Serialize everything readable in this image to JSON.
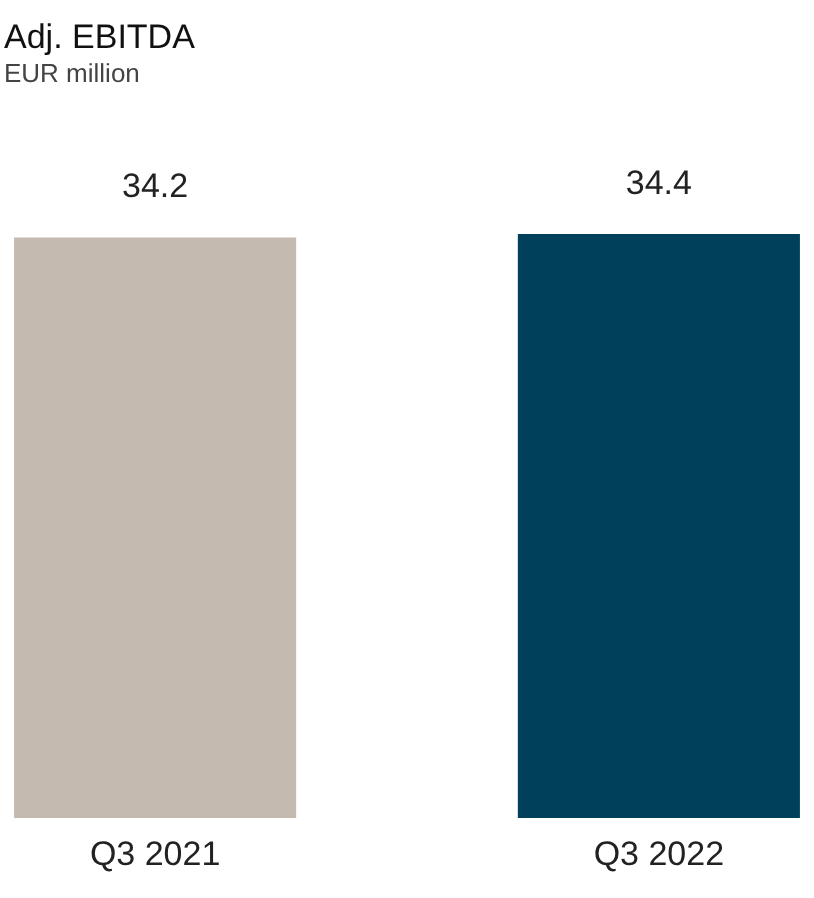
{
  "chart_data": {
    "type": "bar",
    "title": "Adj. EBITDA",
    "subtitle": "EUR million",
    "categories": [
      "Q3 2021",
      "Q3 2022"
    ],
    "values": [
      34.2,
      34.4
    ],
    "colors": [
      "#c4bab0",
      "#00405a"
    ],
    "data_labels": true
  }
}
